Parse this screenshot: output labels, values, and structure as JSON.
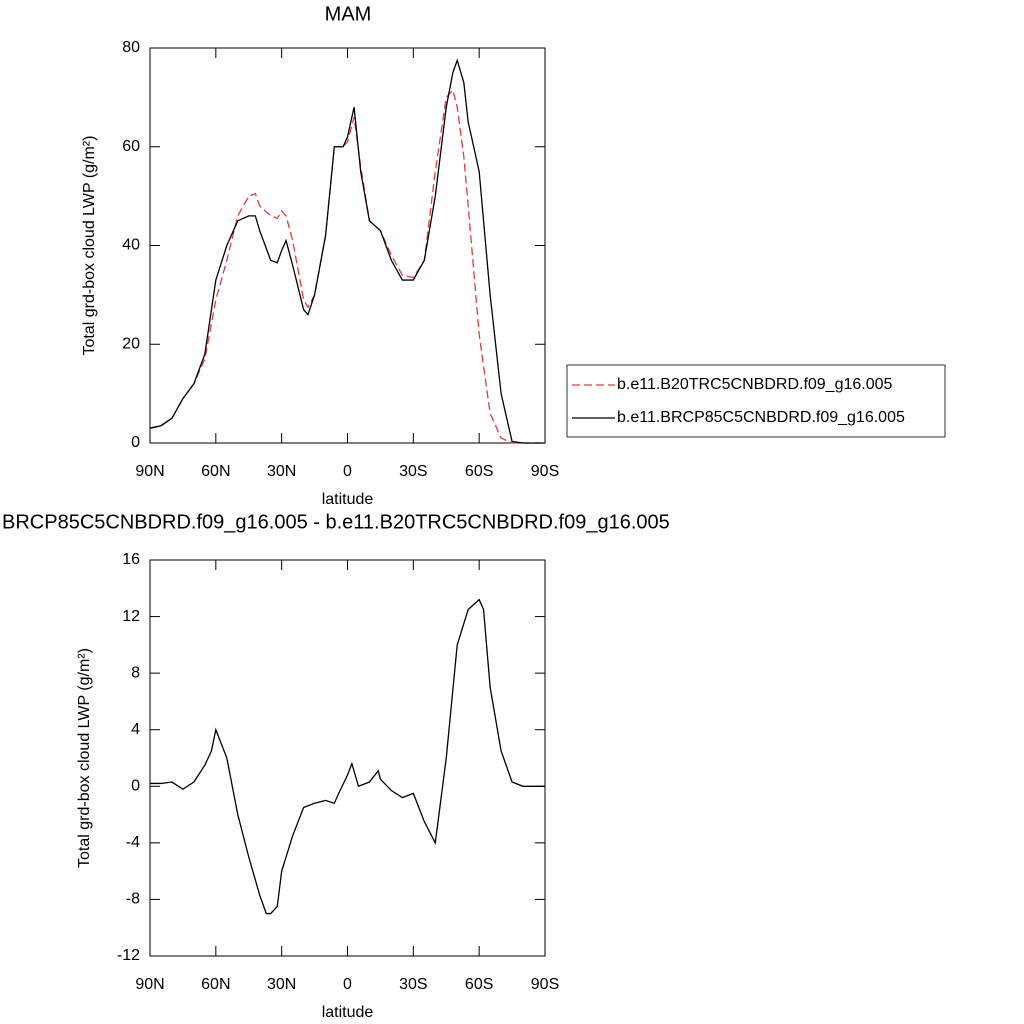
{
  "chart_data": [
    {
      "type": "line",
      "title": "MAM",
      "xlabel": "latitude",
      "ylabel": "Total grd-box cloud LWP (g/m²)",
      "x": [
        90,
        85,
        80,
        75,
        70,
        65,
        60,
        55,
        50,
        45,
        42,
        40,
        35,
        32,
        30,
        28,
        25,
        20,
        18,
        15,
        10,
        6,
        2,
        0,
        -3,
        -6,
        -10,
        -15,
        -20,
        -25,
        -30,
        -35,
        -40,
        -45,
        -48,
        -50,
        -53,
        -55,
        -60,
        -65,
        -70,
        -75,
        -80,
        -85,
        -90
      ],
      "series": [
        {
          "name": "b.e11.B20TRC5CNBDRD.f09_g16.005",
          "color": "#e8393b",
          "style": "dashed",
          "values": [
            3,
            3.5,
            5,
            9,
            12,
            17,
            29,
            37,
            46,
            50,
            50.5,
            48,
            46,
            45.5,
            47,
            46,
            41,
            29,
            27.5,
            30,
            42,
            60,
            60,
            61,
            66,
            56,
            45,
            43,
            38,
            34,
            33.5,
            37,
            55,
            70,
            71.5,
            68,
            58,
            48,
            22,
            6,
            1,
            0,
            0,
            0,
            0
          ]
        },
        {
          "name": "b.e11.BRCP85C5CNBDRD.f09_g16.005",
          "color": "#000000",
          "style": "solid",
          "values": [
            3,
            3.5,
            5,
            9,
            12,
            18,
            33,
            40,
            45,
            46,
            46,
            43,
            37,
            36.5,
            39,
            41,
            36,
            27,
            26,
            30,
            42,
            60,
            60,
            62,
            68,
            55,
            45,
            43,
            37,
            33,
            33,
            37,
            50,
            68,
            75,
            77.5,
            73,
            65,
            55,
            30,
            10,
            0.3,
            0,
            0,
            0
          ]
        }
      ],
      "xlim": [
        90,
        -90
      ],
      "xticks": [
        {
          "value": 90,
          "label": "90N"
        },
        {
          "value": 60,
          "label": "60N"
        },
        {
          "value": 30,
          "label": "30N"
        },
        0,
        {
          "value": -30,
          "label": "30S"
        },
        {
          "value": -60,
          "label": "60S"
        },
        {
          "value": -90,
          "label": "90S"
        }
      ],
      "ylim": [
        0,
        80
      ],
      "yticks": [
        0,
        20,
        40,
        60,
        80
      ],
      "legend": "right"
    },
    {
      "type": "line",
      "title": "BRCP85C5CNBDRD.f09_g16.005 - b.e11.B20TRC5CNBDRD.f09_g16.005",
      "xlabel": "latitude",
      "ylabel": "Total grd-box cloud LWP (g/m²)",
      "x": [
        90,
        85,
        80,
        75,
        70,
        65,
        62,
        60,
        57,
        55,
        50,
        45,
        40,
        37,
        35,
        32,
        30,
        25,
        20,
        15,
        10,
        6,
        4,
        0,
        -2,
        -5,
        -10,
        -14,
        -15,
        -20,
        -25,
        -30,
        -35,
        -40,
        -45,
        -50,
        -55,
        -60,
        -62,
        -65,
        -70,
        -75,
        -80,
        -90
      ],
      "series": [
        {
          "color": "#000000",
          "style": "solid",
          "values": [
            0.2,
            0.2,
            0.3,
            -0.2,
            0.3,
            1.5,
            2.5,
            4,
            2.8,
            2,
            -2,
            -5,
            -7.7,
            -9,
            -9,
            -8.5,
            -6,
            -3.5,
            -1.5,
            -1.2,
            -1,
            -1.2,
            -0.5,
            0.8,
            1.6,
            0,
            0.3,
            1.1,
            0.5,
            -0.3,
            -0.8,
            -0.5,
            -2.5,
            -4,
            2,
            10,
            12.5,
            13.2,
            12.5,
            7,
            2.5,
            0.3,
            0,
            0
          ]
        }
      ],
      "xlim": [
        90,
        -90
      ],
      "xticks": [
        {
          "value": 90,
          "label": "90N"
        },
        {
          "value": 60,
          "label": "60N"
        },
        {
          "value": 30,
          "label": "30N"
        },
        0,
        {
          "value": -30,
          "label": "30S"
        },
        {
          "value": -60,
          "label": "60S"
        },
        {
          "value": -90,
          "label": "90S"
        }
      ],
      "ylim": [
        -12,
        16
      ],
      "yticks": [
        -12,
        -8,
        -4,
        0,
        4,
        8,
        12,
        16
      ]
    }
  ]
}
